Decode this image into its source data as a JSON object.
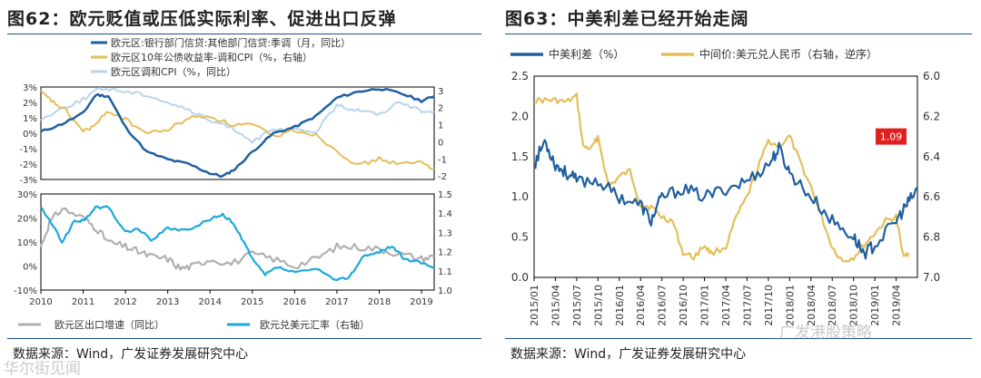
{
  "left": {
    "title": "图62：欧元贬值或压低实际利率、促进出口反弹",
    "source": "数据来源：Wind，广发证券发展研究中心",
    "chart_data": [
      {
        "type": "line",
        "panel": "top",
        "x_ticks": [],
        "y_left": {
          "ticks": [
            "3%",
            "2%",
            "1%",
            "0%",
            "-1%",
            "-2%",
            "-3%"
          ],
          "range": [
            -3,
            3
          ]
        },
        "y_right": {
          "ticks": [
            "3",
            "2",
            "1",
            "0",
            "-1",
            "-2"
          ],
          "range": [
            -2.2,
            3.2
          ]
        },
        "legend": [
          "欧元区:银行部门信贷:其他部门信贷:季调（月，同比）",
          "欧元区10年公债收益率-调和CPI（%，右轴）",
          "欧元区调和CPI（%，同比）"
        ],
        "series": [
          {
            "name": "欧元区:银行部门信贷:其他部门信贷:季调（月，同比）",
            "color": "#1f5fa0",
            "axis": "left",
            "x": [
              2010.0,
              2010.5,
              2011.0,
              2011.3,
              2011.6,
              2012.0,
              2012.5,
              2013.0,
              2013.5,
              2014.0,
              2014.3,
              2014.6,
              2015.0,
              2015.5,
              2016.0,
              2016.5,
              2017.0,
              2017.5,
              2018.0,
              2018.5,
              2019.0,
              2019.3
            ],
            "values": [
              0.1,
              0.6,
              1.3,
              2.5,
              2.4,
              0.4,
              -1.2,
              -1.7,
              -2.0,
              -2.6,
              -2.8,
              -2.3,
              -1.2,
              0.0,
              0.4,
              1.1,
              2.3,
              2.7,
              2.9,
              2.6,
              2.1,
              2.4
            ]
          },
          {
            "name": "欧元区10年公债收益率-调和CPI（%，右轴）",
            "color": "#e5be5b",
            "axis": "right",
            "x": [
              2010.0,
              2010.3,
              2010.6,
              2011.0,
              2011.3,
              2011.6,
              2012.0,
              2012.5,
              2013.0,
              2013.5,
              2014.0,
              2014.5,
              2015.0,
              2015.5,
              2016.0,
              2016.5,
              2017.0,
              2017.5,
              2018.0,
              2018.5,
              2019.0,
              2019.3
            ],
            "values": [
              2.9,
              2.3,
              1.8,
              0.6,
              1.0,
              1.8,
              1.3,
              0.5,
              0.7,
              1.4,
              1.5,
              1.0,
              1.0,
              0.3,
              0.7,
              0.4,
              -0.5,
              -1.4,
              -1.0,
              -1.3,
              -1.2,
              -1.6
            ]
          },
          {
            "name": "欧元区调和CPI（%，同比）",
            "color": "#b8d4ec",
            "axis": "left",
            "x": [
              2010.0,
              2010.5,
              2011.0,
              2011.3,
              2011.6,
              2012.0,
              2012.5,
              2013.0,
              2013.5,
              2014.0,
              2014.5,
              2015.0,
              2015.5,
              2016.0,
              2016.5,
              2017.0,
              2017.3,
              2017.6,
              2018.0,
              2018.5,
              2019.0,
              2019.3
            ],
            "values": [
              0.9,
              1.6,
              2.2,
              2.8,
              2.9,
              2.7,
              2.5,
              2.0,
              1.5,
              0.8,
              0.4,
              -0.5,
              0.2,
              0.2,
              0.1,
              1.8,
              1.6,
              1.5,
              1.2,
              2.1,
              1.4,
              1.4
            ]
          }
        ]
      },
      {
        "type": "line",
        "panel": "bottom",
        "x_ticks": [
          "2010",
          "2011",
          "2012",
          "2013",
          "2014",
          "2015",
          "2016",
          "2017",
          "2018",
          "2019"
        ],
        "y_left": {
          "ticks": [
            "30%",
            "20%",
            "10%",
            "0%",
            "-10%"
          ],
          "range": [
            -10,
            30
          ]
        },
        "y_right": {
          "ticks": [
            "1.5",
            "1.4",
            "1.3",
            "1.2",
            "1.1",
            "1.0"
          ],
          "range": [
            1.0,
            1.5
          ]
        },
        "legend": [
          "欧元区出口增速（同比）",
          "欧元兑美元汇率（右轴）"
        ],
        "series": [
          {
            "name": "欧元区出口增速（同比）",
            "color": "#b0b0b0",
            "axis": "left",
            "x": [
              2010.0,
              2010.2,
              2010.5,
              2011.0,
              2011.3,
              2011.6,
              2012.0,
              2012.3,
              2012.6,
              2013.0,
              2013.3,
              2013.6,
              2014.0,
              2014.5,
              2015.0,
              2015.5,
              2016.0,
              2016.5,
              2017.0,
              2017.5,
              2018.0,
              2018.5,
              2019.0,
              2019.3
            ],
            "values": [
              8,
              18,
              24,
              20,
              16,
              10,
              8,
              6,
              4,
              3,
              -1,
              0,
              3,
              1,
              5,
              3,
              0,
              3,
              8,
              8,
              7,
              5,
              3,
              4
            ]
          },
          {
            "name": "欧元兑美元汇率（右轴）",
            "color": "#1ba9dc",
            "axis": "right",
            "x": [
              2010.0,
              2010.3,
              2010.5,
              2010.8,
              2011.0,
              2011.3,
              2011.6,
              2012.0,
              2012.3,
              2012.6,
              2013.0,
              2013.5,
              2014.0,
              2014.3,
              2014.5,
              2014.8,
              2015.0,
              2015.3,
              2015.6,
              2016.0,
              2016.5,
              2017.0,
              2017.3,
              2017.6,
              2018.0,
              2018.3,
              2018.6,
              2019.0,
              2019.3
            ],
            "values": [
              1.43,
              1.33,
              1.25,
              1.36,
              1.36,
              1.43,
              1.43,
              1.3,
              1.32,
              1.26,
              1.32,
              1.31,
              1.37,
              1.39,
              1.36,
              1.25,
              1.16,
              1.08,
              1.12,
              1.09,
              1.11,
              1.05,
              1.07,
              1.17,
              1.2,
              1.23,
              1.16,
              1.14,
              1.12
            ]
          }
        ]
      }
    ]
  },
  "right": {
    "title": "图63：中美利差已经开始走阔",
    "source": "数据来源：Wind，广发证券发展研究中心",
    "chart_data": {
      "type": "line",
      "x_ticks": [
        "2015/01",
        "2015/04",
        "2015/07",
        "2015/10",
        "2016/01",
        "2016/04",
        "2016/07",
        "2016/10",
        "2017/01",
        "2017/04",
        "2017/07",
        "2017/10",
        "2018/01",
        "2018/04",
        "2018/07",
        "2018/10",
        "2019/01",
        "2019/04"
      ],
      "y_left": {
        "ticks": [
          "2.5",
          "2.0",
          "1.5",
          "1.0",
          "0.5",
          "0.0"
        ],
        "range": [
          0,
          2.5
        ]
      },
      "y_right": {
        "ticks": [
          "6.0",
          "6.2",
          "6.4",
          "6.6",
          "6.8",
          "7.0"
        ],
        "range": [
          6.0,
          7.0
        ],
        "inverted": true
      },
      "legend": [
        "中美利差（%）",
        "中间价:美元兑人民币（右轴，逆序）"
      ],
      "annotation": "1.09",
      "series": [
        {
          "name": "中美利差（%）",
          "color": "#1f5fa0",
          "axis": "left",
          "x": [
            0,
            0.5,
            1,
            1.5,
            2,
            3,
            4,
            5,
            5.5,
            6,
            7,
            8,
            9,
            10,
            11,
            11.5,
            12,
            13,
            14,
            15,
            15.5,
            16,
            17,
            17.5,
            18
          ],
          "values": [
            1.4,
            1.7,
            1.4,
            1.3,
            1.2,
            1.2,
            1.0,
            0.9,
            0.7,
            1.0,
            1.1,
            1.0,
            1.1,
            1.2,
            1.4,
            1.6,
            1.3,
            1.0,
            0.7,
            0.5,
            0.3,
            0.4,
            0.7,
            0.9,
            1.09
          ]
        },
        {
          "name": "中间价:美元兑人民币（右轴，逆序）",
          "color": "#e5be5b",
          "axis": "right",
          "x": [
            0,
            0.5,
            1,
            1.5,
            2,
            2.3,
            2.7,
            3,
            3.5,
            4,
            4.5,
            5,
            5.5,
            6,
            6.5,
            7,
            7.5,
            8,
            8.3,
            9,
            9.5,
            10,
            10.5,
            11,
            11.5,
            12,
            12.5,
            13,
            13.5,
            14,
            14.5,
            15,
            15.5,
            16,
            16.5,
            17,
            17.3,
            17.6
          ],
          "values": [
            6.12,
            6.12,
            6.12,
            6.13,
            6.1,
            6.35,
            6.36,
            6.3,
            6.55,
            6.5,
            6.47,
            6.64,
            6.65,
            6.7,
            6.72,
            6.88,
            6.9,
            6.84,
            6.88,
            6.85,
            6.7,
            6.6,
            6.46,
            6.32,
            6.35,
            6.3,
            6.43,
            6.55,
            6.7,
            6.85,
            6.92,
            6.9,
            6.84,
            6.78,
            6.72,
            6.7,
            6.88,
            6.88
          ]
        }
      ]
    },
    "watermark": "广发港股策略"
  },
  "watermark_left": "华尔街见闻"
}
